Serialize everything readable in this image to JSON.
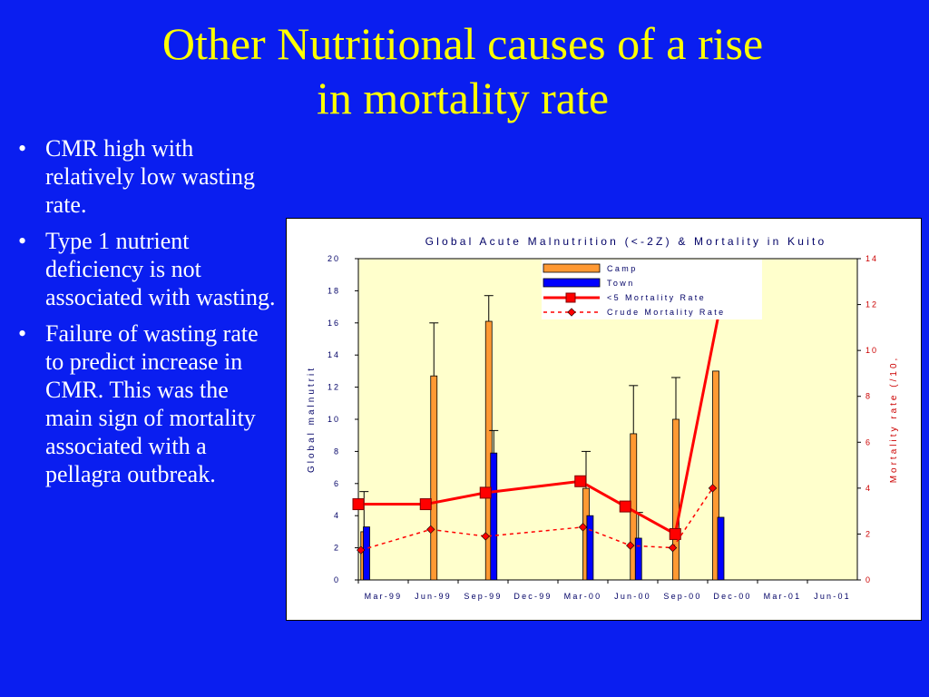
{
  "slide": {
    "title_line1": "Other Nutritional causes of a rise",
    "title_line2": "in mortality rate",
    "bullets": [
      "CMR high with relatively low wasting rate.",
      "Type 1 nutrient deficiency is not associated with wasting.",
      "Failure of wasting rate to predict increase in CMR. This was the main sign of mortality associated with a pellagra outbreak."
    ]
  },
  "chart_data": {
    "type": "bar",
    "title": "Global Acute Malnutrition (<-2Z) & Mortality in Kuito",
    "xlabel": "",
    "ylabel": "Global malnutrit",
    "y2label": "Mortality rate (/10,",
    "ylim": [
      0,
      20
    ],
    "y2lim": [
      0,
      14
    ],
    "yticks": [
      "0",
      "2",
      "4",
      "6",
      "8",
      "10",
      "12",
      "14",
      "16",
      "18",
      "20"
    ],
    "y2ticks": [
      "0",
      "2",
      "4",
      "6",
      "8",
      "10",
      "12",
      "14"
    ],
    "xticks": [
      "Mar-99",
      "Jun-99",
      "Sep-99",
      "Dec-99",
      "Mar-00",
      "Jun-00",
      "Sep-00",
      "Dec-00",
      "Mar-01",
      "Jun-01"
    ],
    "legend_position": "top-right",
    "series": [
      {
        "name": "Camp",
        "kind": "bar",
        "color": "#ff9933",
        "points": [
          [
            0.05,
            3.0,
            5.5
          ],
          [
            1.45,
            12.7,
            16.0
          ],
          [
            2.55,
            16.1,
            17.7
          ],
          [
            4.5,
            5.7,
            8.0
          ],
          [
            5.45,
            9.1,
            12.1
          ],
          [
            6.3,
            10.0,
            12.6
          ],
          [
            7.1,
            13.0,
            null
          ]
        ]
      },
      {
        "name": "Town",
        "kind": "bar",
        "color": "#0000ff",
        "points": [
          [
            0.1,
            3.3,
            null
          ],
          [
            2.65,
            7.9,
            9.3
          ],
          [
            4.58,
            4.0,
            null
          ],
          [
            5.55,
            2.6,
            4.2
          ],
          [
            7.2,
            3.9,
            null
          ]
        ]
      },
      {
        "name": "<5 Mortality Rate",
        "kind": "line",
        "axis": "right",
        "color": "#ff0000",
        "points": [
          [
            0.0,
            3.3
          ],
          [
            1.35,
            3.3
          ],
          [
            2.55,
            3.8
          ],
          [
            4.45,
            4.3
          ],
          [
            5.35,
            3.2
          ],
          [
            6.35,
            2.0
          ],
          [
            7.35,
            13.0
          ]
        ]
      },
      {
        "name": "Crude Mortality Rate",
        "kind": "line",
        "axis": "right",
        "color": "#ff0000",
        "dashed": true,
        "points": [
          [
            0.05,
            1.3
          ],
          [
            1.45,
            2.2
          ],
          [
            2.55,
            1.9
          ],
          [
            4.5,
            2.3
          ],
          [
            5.45,
            1.5
          ],
          [
            6.3,
            1.4
          ],
          [
            7.1,
            4.0
          ]
        ]
      }
    ]
  }
}
